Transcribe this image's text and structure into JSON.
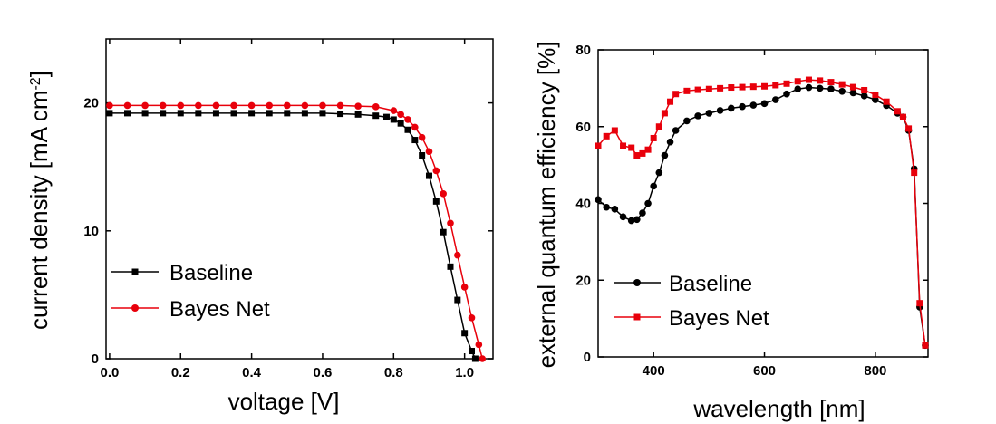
{
  "colors": {
    "baseline": "#000000",
    "bayes_net": "#e8000b"
  },
  "chart_data": [
    {
      "type": "line",
      "xlabel": "voltage [V]",
      "ylabel": "current density [mA cm",
      "ylabel_sup": "-2",
      "ylabel_end": "]",
      "xlim": [
        -0.01,
        1.08
      ],
      "ylim": [
        0,
        25
      ],
      "xticks": [
        "0.0",
        "0.2",
        "0.4",
        "0.6",
        "0.8",
        "1.0"
      ],
      "xtick_values": [
        0.0,
        0.2,
        0.4,
        0.6,
        0.8,
        1.0
      ],
      "yticks": [
        "0",
        "10",
        "20"
      ],
      "ytick_values": [
        0,
        10,
        20
      ],
      "legend_position": "lower-left",
      "series": [
        {
          "name": "Baseline",
          "marker": "square",
          "color": "#000000",
          "x": [
            0.0,
            0.05,
            0.1,
            0.15,
            0.2,
            0.25,
            0.3,
            0.35,
            0.4,
            0.45,
            0.5,
            0.55,
            0.6,
            0.65,
            0.7,
            0.75,
            0.78,
            0.8,
            0.82,
            0.84,
            0.86,
            0.88,
            0.9,
            0.92,
            0.94,
            0.96,
            0.98,
            1.0,
            1.02,
            1.03
          ],
          "y": [
            19.2,
            19.2,
            19.2,
            19.2,
            19.2,
            19.2,
            19.2,
            19.2,
            19.2,
            19.2,
            19.2,
            19.2,
            19.2,
            19.15,
            19.1,
            19.0,
            18.9,
            18.7,
            18.4,
            17.9,
            17.1,
            15.9,
            14.3,
            12.3,
            9.9,
            7.2,
            4.6,
            2.0,
            0.6,
            0.0
          ]
        },
        {
          "name": "Bayes Net",
          "marker": "circle",
          "color": "#e8000b",
          "x": [
            0.0,
            0.05,
            0.1,
            0.15,
            0.2,
            0.25,
            0.3,
            0.35,
            0.4,
            0.45,
            0.5,
            0.55,
            0.6,
            0.65,
            0.7,
            0.75,
            0.8,
            0.82,
            0.84,
            0.86,
            0.88,
            0.9,
            0.92,
            0.94,
            0.96,
            0.98,
            1.0,
            1.02,
            1.04,
            1.05
          ],
          "y": [
            19.8,
            19.8,
            19.8,
            19.8,
            19.8,
            19.8,
            19.8,
            19.8,
            19.8,
            19.8,
            19.8,
            19.8,
            19.8,
            19.8,
            19.75,
            19.7,
            19.4,
            19.1,
            18.7,
            18.1,
            17.3,
            16.2,
            14.7,
            12.9,
            10.6,
            8.1,
            5.6,
            3.2,
            1.1,
            0.0
          ]
        }
      ]
    },
    {
      "type": "line",
      "xlabel": "wavelength [nm]",
      "ylabel": "external quantum efficiency [%]",
      "xlim": [
        300,
        895
      ],
      "ylim": [
        0,
        80
      ],
      "xticks": [
        "400",
        "600",
        "800"
      ],
      "xtick_values": [
        400,
        600,
        800
      ],
      "yticks": [
        "0",
        "20",
        "40",
        "60",
        "80"
      ],
      "ytick_values": [
        0,
        20,
        40,
        60,
        80
      ],
      "legend_position": "lower-left",
      "series": [
        {
          "name": "Baseline",
          "marker": "circle",
          "color": "#000000",
          "x": [
            300,
            315,
            330,
            345,
            360,
            370,
            380,
            390,
            400,
            410,
            420,
            430,
            440,
            460,
            480,
            500,
            520,
            540,
            560,
            580,
            600,
            620,
            640,
            660,
            680,
            700,
            720,
            740,
            760,
            780,
            800,
            820,
            840,
            850,
            860,
            870,
            880,
            890
          ],
          "y": [
            41,
            39,
            38.5,
            36.5,
            35.5,
            35.8,
            37.5,
            40,
            44.5,
            48,
            52.5,
            56,
            59,
            61.5,
            62.8,
            63.5,
            64.2,
            64.8,
            65.2,
            65.6,
            66,
            67,
            68.5,
            69.8,
            70.2,
            70,
            69.8,
            69.2,
            68.8,
            68,
            67,
            65.5,
            63.5,
            62.5,
            59,
            49,
            13,
            3
          ]
        },
        {
          "name": "Bayes Net",
          "marker": "square",
          "color": "#e8000b",
          "x": [
            300,
            315,
            330,
            345,
            360,
            370,
            380,
            390,
            400,
            410,
            420,
            430,
            440,
            460,
            480,
            500,
            520,
            540,
            560,
            580,
            600,
            620,
            640,
            660,
            680,
            700,
            720,
            740,
            760,
            780,
            800,
            820,
            840,
            850,
            860,
            870,
            880,
            890
          ],
          "y": [
            55,
            57.5,
            59,
            55,
            54.5,
            52.5,
            53,
            54,
            57,
            60,
            63.5,
            66.5,
            68.5,
            69.3,
            69.6,
            69.8,
            70,
            70.2,
            70.3,
            70.4,
            70.5,
            70.8,
            71.2,
            71.8,
            72.2,
            72,
            71.6,
            71,
            70.3,
            69.5,
            68.3,
            66.5,
            64,
            62.5,
            59.5,
            48,
            14,
            3
          ]
        }
      ]
    }
  ]
}
